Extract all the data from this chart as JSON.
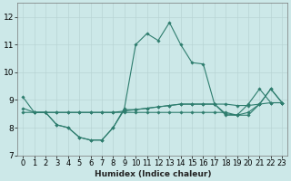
{
  "xlabel": "Humidex (Indice chaleur)",
  "xlim": [
    -0.5,
    23.5
  ],
  "ylim": [
    7,
    12.5
  ],
  "yticks": [
    7,
    8,
    9,
    10,
    11,
    12
  ],
  "xticks": [
    0,
    1,
    2,
    3,
    4,
    5,
    6,
    7,
    8,
    9,
    10,
    11,
    12,
    13,
    14,
    15,
    16,
    17,
    18,
    19,
    20,
    21,
    22,
    23
  ],
  "line_color": "#2e7d6e",
  "bg_color": "#cce8e8",
  "grid_color": "#b8d4d4",
  "lines": [
    {
      "x": [
        0,
        1,
        2,
        3,
        4,
        5,
        6,
        7,
        8,
        9,
        10,
        11,
        12,
        13,
        14,
        15,
        16,
        17,
        18,
        19,
        20,
        21,
        22,
        23
      ],
      "y": [
        9.1,
        8.55,
        8.55,
        8.1,
        8.0,
        7.65,
        7.55,
        7.55,
        8.0,
        8.7,
        11.0,
        11.4,
        11.15,
        11.8,
        11.0,
        10.35,
        10.3,
        8.85,
        8.5,
        8.45,
        8.85,
        9.4,
        8.9,
        8.9
      ]
    },
    {
      "x": [
        0,
        1,
        2,
        3,
        4,
        5,
        6,
        7,
        8,
        9,
        10,
        11,
        12,
        13,
        14,
        15,
        16,
        17,
        18,
        19,
        20,
        21,
        22,
        23
      ],
      "y": [
        8.55,
        8.55,
        8.55,
        8.55,
        8.55,
        8.55,
        8.55,
        8.55,
        8.55,
        8.6,
        8.65,
        8.7,
        8.75,
        8.8,
        8.85,
        8.85,
        8.85,
        8.85,
        8.85,
        8.8,
        8.8,
        8.85,
        8.9,
        8.9
      ]
    },
    {
      "x": [
        1,
        2,
        3,
        4,
        5,
        6,
        7,
        8,
        9,
        10,
        11,
        12,
        13,
        14,
        15,
        16,
        17,
        18,
        19,
        20,
        21,
        22,
        23
      ],
      "y": [
        8.55,
        8.55,
        8.55,
        8.55,
        8.55,
        8.55,
        8.55,
        8.55,
        8.55,
        8.55,
        8.55,
        8.55,
        8.55,
        8.55,
        8.55,
        8.55,
        8.55,
        8.55,
        8.45,
        8.45,
        8.85,
        9.4,
        8.9
      ]
    },
    {
      "x": [
        0,
        1,
        2,
        3,
        4,
        5,
        6,
        7,
        8,
        9,
        10,
        11,
        12,
        13,
        14,
        15,
        16,
        17,
        18,
        19,
        20,
        21,
        22,
        23
      ],
      "y": [
        8.7,
        8.55,
        8.55,
        8.1,
        8.0,
        7.65,
        7.55,
        7.55,
        8.0,
        8.65,
        8.65,
        8.7,
        8.75,
        8.8,
        8.85,
        8.85,
        8.85,
        8.85,
        8.45,
        8.45,
        8.55,
        8.85,
        9.4,
        8.9
      ]
    }
  ],
  "marker": "D",
  "marker_size": 1.8,
  "linewidth": 0.8,
  "xlabel_fontsize": 6.5,
  "tick_fontsize": 6,
  "ytick_fontsize": 6.5
}
